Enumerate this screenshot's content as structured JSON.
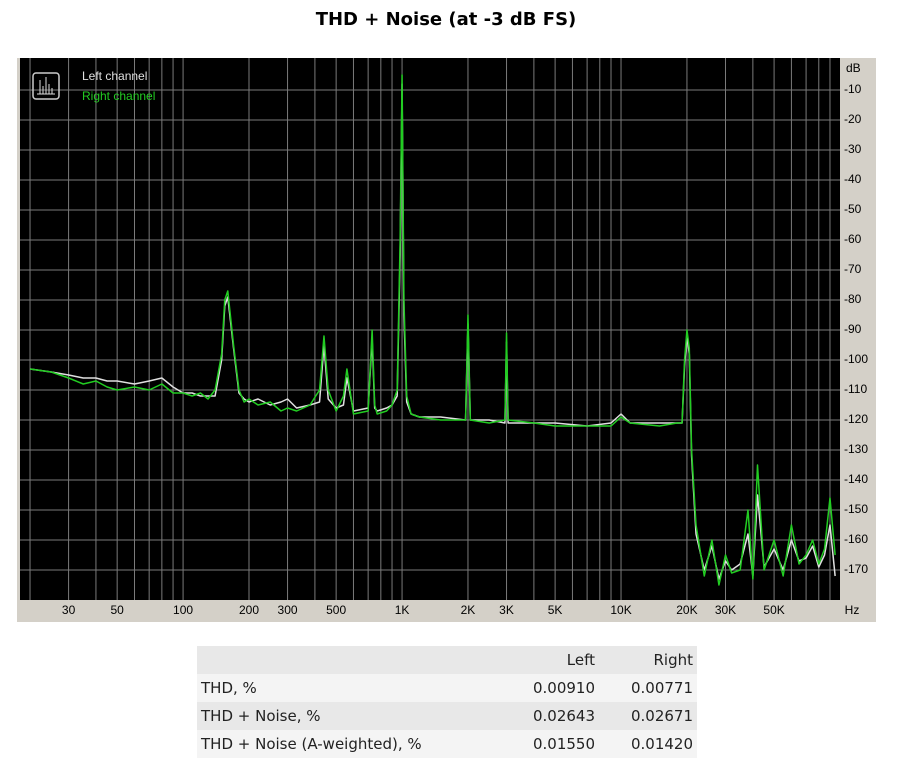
{
  "title": "THD + Noise (at -3 dB FS)",
  "chart_data": {
    "type": "line",
    "xscale": "log",
    "grid": true,
    "legend": "top-left",
    "background": "#000000",
    "x_label": "Hz",
    "y_label": "dB",
    "xlim": [
      18,
      100000
    ],
    "ylim": [
      -180,
      0
    ],
    "xticks": [
      30,
      50,
      100,
      200,
      300,
      500,
      {
        "value": 1000,
        "label": "1K"
      },
      {
        "value": 2000,
        "label": "2K"
      },
      {
        "value": 3000,
        "label": "3K"
      },
      {
        "value": 5000,
        "label": "5K"
      },
      {
        "value": 10000,
        "label": "10K"
      },
      {
        "value": 20000,
        "label": "20K"
      },
      {
        "value": 30000,
        "label": "30K"
      },
      {
        "value": 50000,
        "label": "50K"
      }
    ],
    "minor_xticks": [
      20,
      40,
      60,
      70,
      80,
      90,
      400,
      600,
      700,
      800,
      900,
      4000,
      6000,
      7000,
      8000,
      9000,
      40000,
      60000,
      70000,
      80000,
      90000
    ],
    "yticks": [
      -10,
      -20,
      -30,
      -40,
      -50,
      -60,
      -70,
      -80,
      -90,
      -100,
      -110,
      -120,
      -130,
      -140,
      -150,
      -160,
      -170
    ],
    "x": [
      20,
      25,
      30,
      35,
      40,
      45,
      50,
      60,
      70,
      80,
      90,
      100,
      110,
      120,
      130,
      140,
      150,
      155,
      160,
      170,
      180,
      190,
      200,
      220,
      250,
      280,
      300,
      330,
      380,
      420,
      440,
      460,
      500,
      540,
      560,
      600,
      700,
      730,
      750,
      770,
      850,
      900,
      950,
      980,
      1000,
      1020,
      1050,
      1100,
      1200,
      1500,
      1950,
      2000,
      2050,
      2500,
      2950,
      3000,
      3050,
      4000,
      5000,
      7000,
      9000,
      10000,
      11000,
      15000,
      18000,
      19000,
      19500,
      20000,
      20500,
      21000,
      22000,
      24000,
      26000,
      28000,
      30000,
      32000,
      35000,
      38000,
      40000,
      42000,
      45000,
      50000,
      55000,
      60000,
      65000,
      70000,
      75000,
      80000,
      85000,
      90000,
      95000
    ],
    "series": [
      {
        "name": "Left channel",
        "color": "#e0e0e0",
        "values": [
          -103,
          -104,
          -105,
          -106,
          -106,
          -107,
          -107,
          -108,
          -107,
          -106,
          -109,
          -111,
          -111,
          -112,
          -112,
          -112,
          -100,
          -82,
          -79,
          -96,
          -111,
          -113,
          -114,
          -113,
          -115,
          -114,
          -113,
          -116,
          -115,
          -114,
          -95,
          -113,
          -116,
          -115,
          -106,
          -117,
          -116,
          -93,
          -116,
          -117,
          -116,
          -115,
          -112,
          -65,
          -8,
          -85,
          -114,
          -118,
          -119,
          -119,
          -120,
          -88,
          -120,
          -120,
          -121,
          -94,
          -121,
          -121,
          -121,
          -122,
          -121,
          -118,
          -121,
          -121,
          -121,
          -121,
          -102,
          -92,
          -98,
          -132,
          -158,
          -170,
          -162,
          -173,
          -167,
          -170,
          -168,
          -158,
          -172,
          -145,
          -169,
          -163,
          -170,
          -160,
          -167,
          -166,
          -162,
          -169,
          -165,
          -155,
          -172
        ]
      },
      {
        "name": "Right channel",
        "color": "#22cc22",
        "values": [
          -103,
          -104,
          -106,
          -108,
          -107,
          -109,
          -110,
          -109,
          -110,
          -108,
          -111,
          -111,
          -112,
          -111,
          -113,
          -110,
          -98,
          -80,
          -77,
          -95,
          -110,
          -114,
          -113,
          -115,
          -114,
          -117,
          -116,
          -117,
          -115,
          -110,
          -92,
          -110,
          -117,
          -112,
          -103,
          -118,
          -117,
          -90,
          -115,
          -118,
          -117,
          -115,
          -110,
          -60,
          -5,
          -80,
          -112,
          -118,
          -119,
          -120,
          -120,
          -85,
          -120,
          -121,
          -120,
          -91,
          -120,
          -121,
          -122,
          -122,
          -122,
          -119,
          -121,
          -122,
          -121,
          -121,
          -100,
          -90,
          -96,
          -130,
          -155,
          -172,
          -160,
          -175,
          -165,
          -171,
          -170,
          -150,
          -173,
          -135,
          -170,
          -160,
          -172,
          -155,
          -168,
          -165,
          -160,
          -168,
          -163,
          -146,
          -165
        ]
      }
    ]
  },
  "table": {
    "columns": [
      "Left",
      "Right"
    ],
    "rows": [
      {
        "label": "THD, %",
        "values": [
          "0.00910",
          "0.00771"
        ]
      },
      {
        "label": "THD + Noise, %",
        "values": [
          "0.02643",
          "0.02671"
        ]
      },
      {
        "label": "THD + Noise (A-weighted), %",
        "values": [
          "0.01550",
          "0.01420"
        ]
      }
    ]
  }
}
